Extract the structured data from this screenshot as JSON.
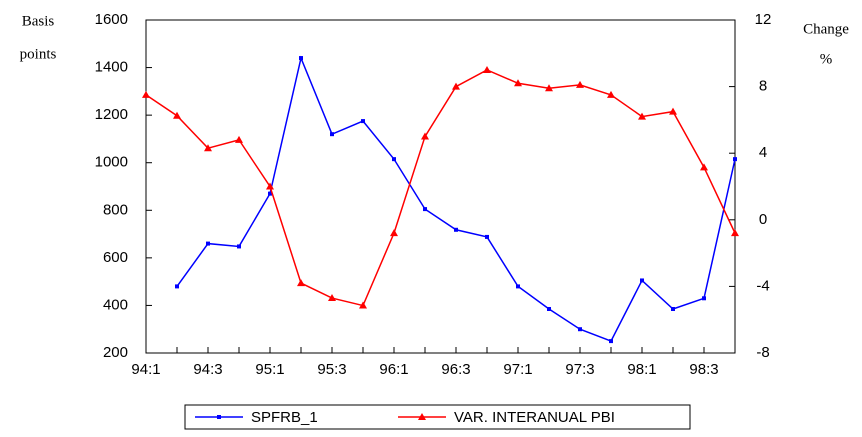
{
  "chart_data": {
    "type": "line",
    "y_label": [
      "Basis",
      "points"
    ],
    "y2_label": [
      "Change",
      "%"
    ],
    "categories": [
      "94:1",
      null,
      "94:3",
      null,
      "95:1",
      null,
      "95:3",
      null,
      "96:1",
      null,
      "96:3",
      null,
      "97:1",
      null,
      "97:3",
      null,
      "98:1",
      null,
      "98:3",
      null
    ],
    "series": [
      {
        "name": "SPFRB_1",
        "color": "#0000ff",
        "marker": "dot",
        "values": [
          null,
          480,
          660,
          648,
          870,
          1440,
          1120,
          1175,
          1015,
          805,
          718,
          688,
          480,
          385,
          300,
          250,
          505,
          385,
          430,
          1015
        ]
      },
      {
        "name": "VAR. INTERANUAL PBI",
        "color": "#ff0000",
        "marker": "triangle",
        "axis": "y2",
        "values": [
          7.5,
          6.25,
          4.3,
          4.8,
          2.0,
          -3.8,
          -4.7,
          -5.15,
          -0.8,
          5.0,
          8.0,
          9.0,
          8.2,
          7.9,
          8.1,
          7.5,
          6.2,
          6.5,
          3.15,
          -0.8
        ]
      }
    ],
    "ylim": [
      200,
      1600
    ],
    "yticks": [
      200,
      400,
      600,
      800,
      1000,
      1200,
      1400,
      1600
    ],
    "y2lim": [
      -8,
      12
    ],
    "y2ticks": [
      -8,
      -4,
      0,
      4,
      8,
      12
    ],
    "grid": false,
    "legend": "bottom"
  }
}
